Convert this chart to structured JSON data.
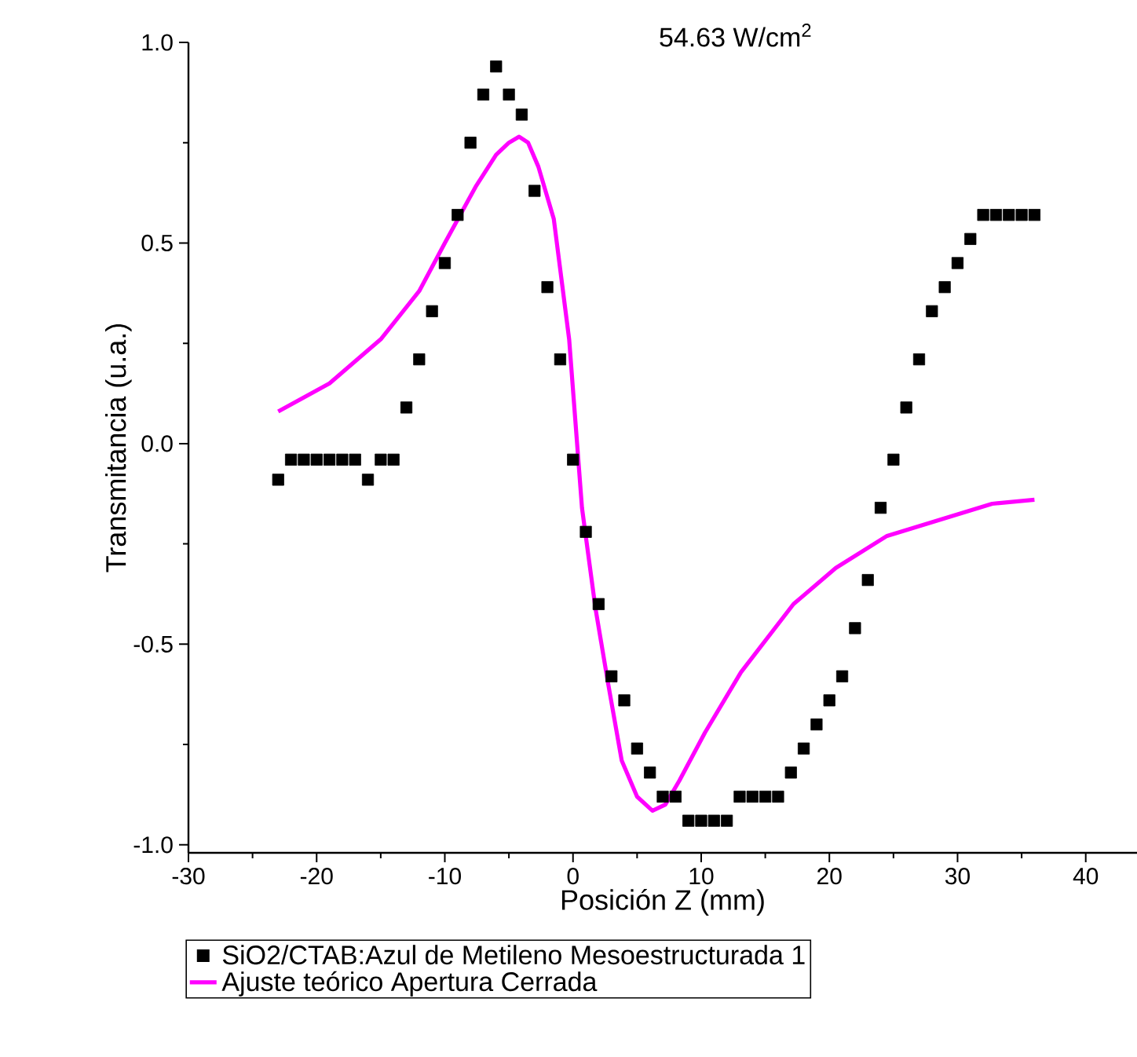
{
  "chart_data": {
    "type": "scatter",
    "xlabel": "Posición Z (mm)",
    "ylabel": "Transmitancia (u.a.)",
    "annotations": [
      "54.63 W/cm$^{2}$"
    ],
    "xlim": [
      -30,
      44
    ],
    "ylim": [
      -1.02,
      1.0
    ],
    "xticks": [
      -30,
      -20,
      -10,
      0,
      10,
      20,
      30,
      40
    ],
    "yticks": [
      {
        "value": -1.0,
        "label": "-1.0"
      },
      -0.5,
      {
        "value": 0.0,
        "label": "0.0"
      },
      0.5,
      {
        "value": 1.0,
        "label": "1.0"
      }
    ],
    "legend": "bottom",
    "grid": false,
    "series": [
      {
        "name": "SiO2/CTAB:Azul de Metileno Mesoestructurada 1",
        "marker": "square",
        "color": "#000000",
        "x": [
          -23,
          -22,
          -21,
          -20,
          -19,
          -18,
          -17,
          -16,
          -15,
          -14,
          -13,
          -12,
          -11,
          -10,
          -9,
          -8,
          -7,
          -6,
          -5,
          -4,
          -3,
          -2,
          -1,
          0,
          1,
          2,
          3,
          4,
          5,
          6,
          7,
          8,
          9,
          10,
          11,
          12,
          13,
          14,
          15,
          16,
          17,
          18,
          19,
          20,
          21,
          22,
          23,
          24,
          25,
          26,
          27,
          28,
          29,
          30,
          31,
          32,
          33,
          34,
          35,
          36
        ],
        "values": [
          -0.09,
          -0.04,
          -0.04,
          -0.04,
          -0.04,
          -0.04,
          -0.04,
          -0.09,
          -0.04,
          -0.04,
          0.09,
          0.21,
          0.33,
          0.45,
          0.57,
          0.75,
          0.87,
          0.94,
          0.87,
          0.82,
          0.63,
          0.39,
          0.21,
          -0.04,
          -0.22,
          -0.4,
          -0.58,
          -0.64,
          -0.76,
          -0.82,
          -0.88,
          -0.88,
          -0.94,
          -0.94,
          -0.94,
          -0.94,
          -0.88,
          -0.88,
          -0.88,
          -0.88,
          -0.82,
          -0.76,
          -0.7,
          -0.64,
          -0.58,
          -0.46,
          -0.34,
          -0.16,
          -0.04,
          0.09,
          0.21,
          0.33,
          0.39,
          0.45,
          0.51,
          0.57,
          0.57,
          0.57,
          0.57,
          0.57
        ]
      },
      {
        "name": "Ajuste teórico Apertura Cerrada",
        "type": "line",
        "marker": "none",
        "line_style": "solid",
        "color": "#ff00ff",
        "x": [
          -23,
          -19,
          -15,
          -12,
          -10,
          -7.6,
          -6,
          -5,
          -4.2,
          -3.5,
          -2.7,
          -1.5,
          -0.3,
          0.7,
          1.75,
          2.75,
          3.8,
          5.0,
          6.2,
          7.2,
          8.3,
          10.3,
          13.1,
          17.2,
          20.5,
          24.5,
          28.6,
          32.7,
          36
        ],
        "values": [
          0.08,
          0.15,
          0.26,
          0.38,
          0.5,
          0.64,
          0.72,
          0.75,
          0.765,
          0.75,
          0.69,
          0.56,
          0.26,
          -0.16,
          -0.41,
          -0.6,
          -0.79,
          -0.88,
          -0.915,
          -0.9,
          -0.84,
          -0.72,
          -0.57,
          -0.4,
          -0.31,
          -0.23,
          -0.19,
          -0.15,
          -0.14
        ]
      }
    ]
  }
}
